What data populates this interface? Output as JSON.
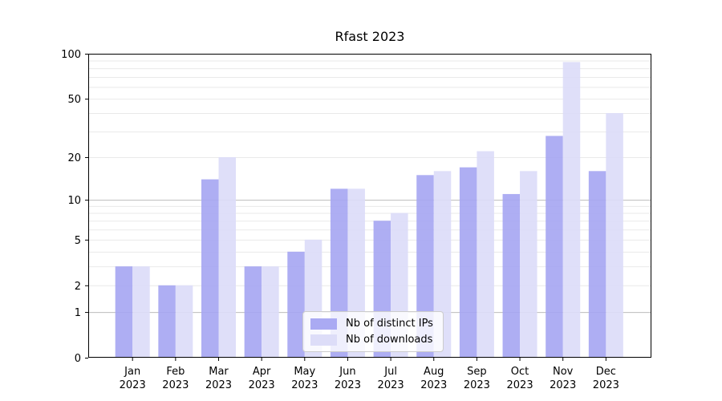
{
  "chart_data": {
    "type": "bar",
    "title": "Rfast 2023",
    "categories": [
      "Jan 2023",
      "Feb 2023",
      "Mar 2023",
      "Apr 2023",
      "May 2023",
      "Jun 2023",
      "Jul 2023",
      "Aug 2023",
      "Sep 2023",
      "Oct 2023",
      "Nov 2023",
      "Dec 2023"
    ],
    "month_labels": [
      "Jan",
      "Feb",
      "Mar",
      "Apr",
      "May",
      "Jun",
      "Jul",
      "Aug",
      "Sep",
      "Oct",
      "Nov",
      "Dec"
    ],
    "year_label": "2023",
    "series": [
      {
        "name": "Nb of distinct IPs",
        "color": "#a5a5f2",
        "values": [
          3,
          2,
          14,
          3,
          4,
          12,
          7,
          15,
          17,
          11,
          28,
          16
        ]
      },
      {
        "name": "Nb of downloads",
        "color": "#dbdbf8",
        "values": [
          3,
          2,
          20,
          3,
          5,
          12,
          8,
          16,
          22,
          16,
          88,
          40
        ]
      }
    ],
    "y_ticks": [
      0,
      1,
      2,
      5,
      10,
      20,
      50,
      100
    ],
    "y_scale": "log1p",
    "ylim": [
      0,
      100
    ],
    "grid": {
      "major": [
        1,
        10,
        100
      ],
      "minor": [
        2,
        3,
        4,
        5,
        6,
        7,
        8,
        9,
        20,
        30,
        40,
        50,
        60,
        70,
        80,
        90
      ]
    },
    "legend_position": "lower-center",
    "axis_color": "#000000",
    "major_grid_color": "#bdbdbd",
    "minor_grid_color": "#e9e9e9"
  }
}
